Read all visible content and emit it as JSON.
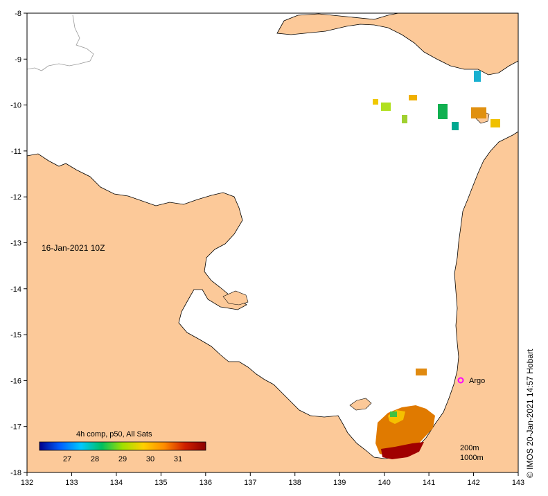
{
  "map": {
    "date_label": "16-Jan-2021 10Z",
    "lon_ticks": [
      "132",
      "133",
      "134",
      "135",
      "136",
      "137",
      "138",
      "139",
      "140",
      "141",
      "142",
      "143"
    ],
    "lat_ticks": [
      "-8",
      "-9",
      "-10",
      "-11",
      "-12",
      "-13",
      "-14",
      "-15",
      "-16",
      "-17",
      "-18"
    ],
    "land_color": "#fcc999",
    "sea_color": "#ffffff",
    "argo": {
      "label": "Argo",
      "lon": 141.7,
      "lat": -16.0,
      "color": "#ff00ff"
    },
    "depth_legend": [
      "200m",
      "1000m"
    ]
  },
  "colorbar": {
    "title": "4h comp, p50, All Sats",
    "min": 26.0,
    "max": 32.0,
    "tick_labels": [
      "27",
      "28",
      "29",
      "30",
      "31"
    ],
    "colors": [
      "#00008b",
      "#0060ff",
      "#00c8ff",
      "#00c060",
      "#a0e000",
      "#ffd000",
      "#ff8c00",
      "#d02000",
      "#8b0000"
    ]
  },
  "credit": "© IMOS 20-Jan-2021 14:57 Hobart"
}
